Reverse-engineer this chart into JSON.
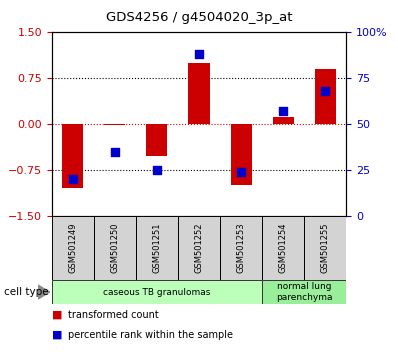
{
  "title": "GDS4256 / g4504020_3p_at",
  "samples": [
    "GSM501249",
    "GSM501250",
    "GSM501251",
    "GSM501252",
    "GSM501253",
    "GSM501254",
    "GSM501255"
  ],
  "transformed_count": [
    -1.05,
    -0.02,
    -0.52,
    1.0,
    -1.0,
    0.12,
    0.9
  ],
  "percentile_rank_raw": [
    20,
    35,
    25,
    88,
    24,
    57,
    68
  ],
  "bar_color": "#cc0000",
  "dot_color": "#0000cc",
  "ylim_left": [
    -1.5,
    1.5
  ],
  "ylim_right": [
    0,
    100
  ],
  "yticks_left": [
    -1.5,
    -0.75,
    0,
    0.75,
    1.5
  ],
  "yticks_right": [
    0,
    25,
    50,
    75,
    100
  ],
  "hlines_black": [
    0.75,
    -0.75
  ],
  "hline_red": 0,
  "cell_type_groups": [
    {
      "label": "caseous TB granulomas",
      "start": 0,
      "end": 5,
      "color": "#bbffbb"
    },
    {
      "label": "normal lung\nparenchyma",
      "start": 5,
      "end": 7,
      "color": "#99ee99"
    }
  ],
  "cell_type_label": "cell type",
  "legend_entries": [
    {
      "label": "transformed count",
      "color": "#cc0000",
      "marker": "s"
    },
    {
      "label": "percentile rank within the sample",
      "color": "#0000cc",
      "marker": "s"
    }
  ],
  "tick_label_color_left": "#cc0000",
  "tick_label_color_right": "#0000cc",
  "background_color": "#ffffff",
  "bar_width": 0.5,
  "dot_size": 40,
  "sample_box_color": "#d3d3d3"
}
